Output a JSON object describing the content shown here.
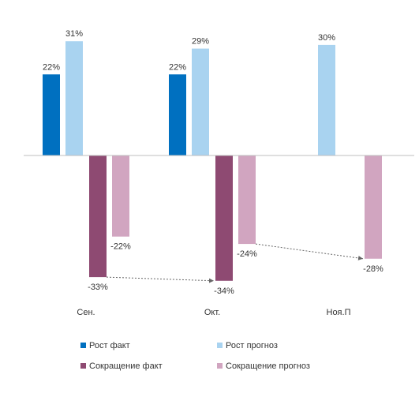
{
  "chart_data": {
    "type": "bar",
    "categories": [
      "Сен.",
      "Окт.",
      "Ноя.П"
    ],
    "series": [
      {
        "name": "Рост факт",
        "color": "#0070C0",
        "values": [
          22,
          22,
          null
        ]
      },
      {
        "name": "Рост прогноз",
        "color": "#A9D3F0",
        "values": [
          31,
          29,
          30
        ]
      },
      {
        "name": "Сокращение факт",
        "color": "#8E4A72",
        "values": [
          -33,
          -34,
          null
        ]
      },
      {
        "name": "Сокращение прогноз",
        "color": "#D1A5C0",
        "values": [
          -22,
          -24,
          -28
        ]
      }
    ],
    "title": "",
    "xlabel": "",
    "ylabel": "",
    "ylim": [
      -34,
      31
    ],
    "grid": false,
    "legend_position": "bottom",
    "value_suffix": "%",
    "trend_arrows": [
      {
        "from_category": "Сен.",
        "to_category": "Окт.",
        "series": "Сокращение факт"
      },
      {
        "from_category": "Окт.",
        "to_category": "Ноя.П",
        "series": "Сокращение прогноз"
      }
    ]
  }
}
